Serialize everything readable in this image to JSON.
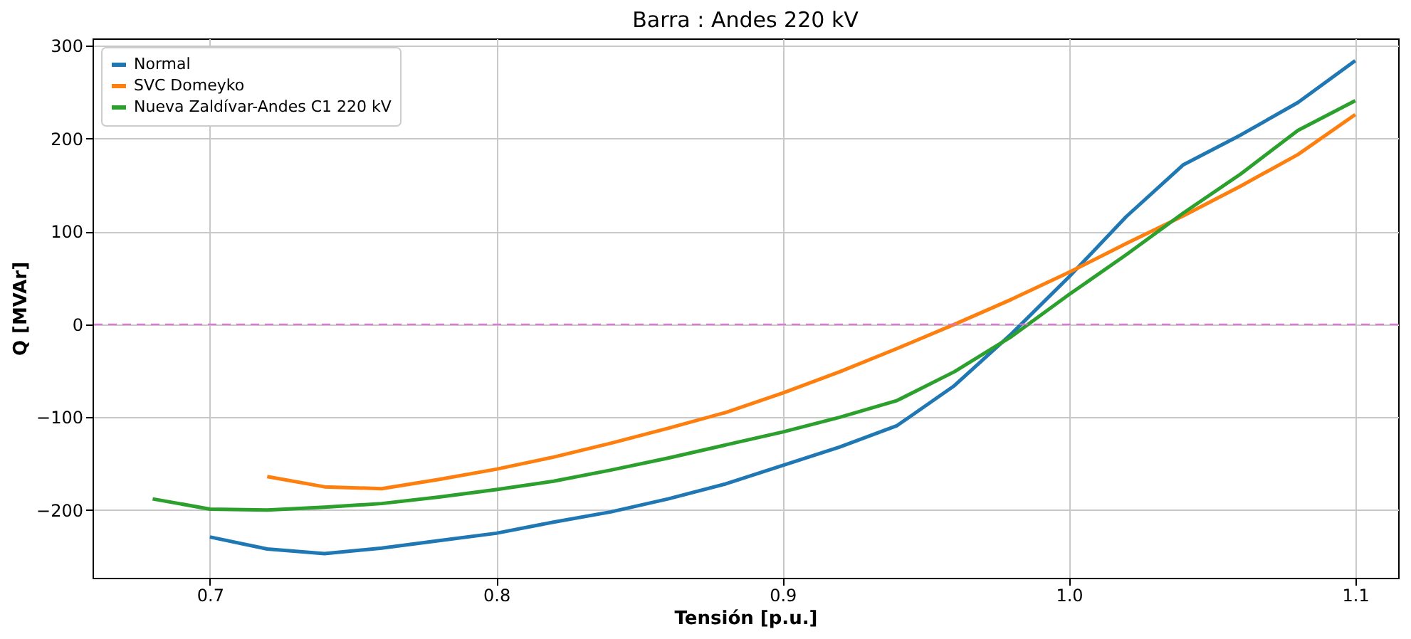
{
  "chart_data": {
    "type": "line",
    "title": "Barra : Andes 220 kV",
    "xlabel": "Tensión [p.u.]",
    "ylabel": "Q [MVAr]",
    "xlim": [
      0.659,
      1.115
    ],
    "xticks": [
      {
        "value": 0.7,
        "label": "0.7"
      },
      {
        "value": 0.8,
        "label": "0.8"
      },
      {
        "value": 0.9,
        "label": "0.9"
      },
      {
        "value": 1.0,
        "label": "1.0"
      },
      {
        "value": 1.1,
        "label": "1.1"
      }
    ],
    "ylim": [
      -273,
      308
    ],
    "yticks": [
      -200,
      -100,
      0,
      100,
      200,
      300
    ],
    "grid": true,
    "legend": "top left",
    "line_style": "solid",
    "ref_lines": [
      {
        "axis": "y",
        "value": 0,
        "color": "#da70d6",
        "line_style": "dashed"
      }
    ],
    "series": [
      {
        "name": "Normal",
        "color": "#1f77b4",
        "x": [
          0.7,
          0.72,
          0.74,
          0.76,
          0.78,
          0.8,
          0.82,
          0.84,
          0.86,
          0.88,
          0.9,
          0.92,
          0.94,
          0.96,
          0.98,
          1.0,
          1.02,
          1.04,
          1.06,
          1.08,
          1.1
        ],
        "values": [
          -229,
          -242,
          -247,
          -241,
          -233,
          -225,
          -213,
          -202,
          -188,
          -172,
          -152,
          -132,
          -109,
          -66,
          -10,
          51,
          116,
          172,
          204,
          239,
          284
        ]
      },
      {
        "name": "SVC Domeyko",
        "color": "#ff7f0e",
        "x": [
          0.72,
          0.74,
          0.76,
          0.78,
          0.8,
          0.82,
          0.84,
          0.86,
          0.88,
          0.9,
          0.92,
          0.94,
          0.96,
          0.98,
          1.0,
          1.02,
          1.04,
          1.06,
          1.08,
          1.1
        ],
        "values": [
          -164,
          -175,
          -177,
          -167,
          -156,
          -143,
          -128,
          -112,
          -95,
          -74,
          -51,
          -26,
          0,
          27,
          56,
          87,
          117,
          149,
          183,
          226
        ]
      },
      {
        "name": "Nueva Zaldívar-Andes C1 220 kV",
        "color": "#2ca02c",
        "x": [
          0.68,
          0.7,
          0.72,
          0.74,
          0.76,
          0.78,
          0.8,
          0.82,
          0.84,
          0.86,
          0.88,
          0.9,
          0.92,
          0.94,
          0.96,
          0.98,
          1.0,
          1.02,
          1.04,
          1.06,
          1.08,
          1.1
        ],
        "values": [
          -188,
          -199,
          -200,
          -197,
          -193,
          -186,
          -178,
          -169,
          -157,
          -144,
          -130,
          -116,
          -100,
          -82,
          -51,
          -13,
          32,
          75,
          120,
          162,
          209,
          241
        ]
      }
    ]
  }
}
